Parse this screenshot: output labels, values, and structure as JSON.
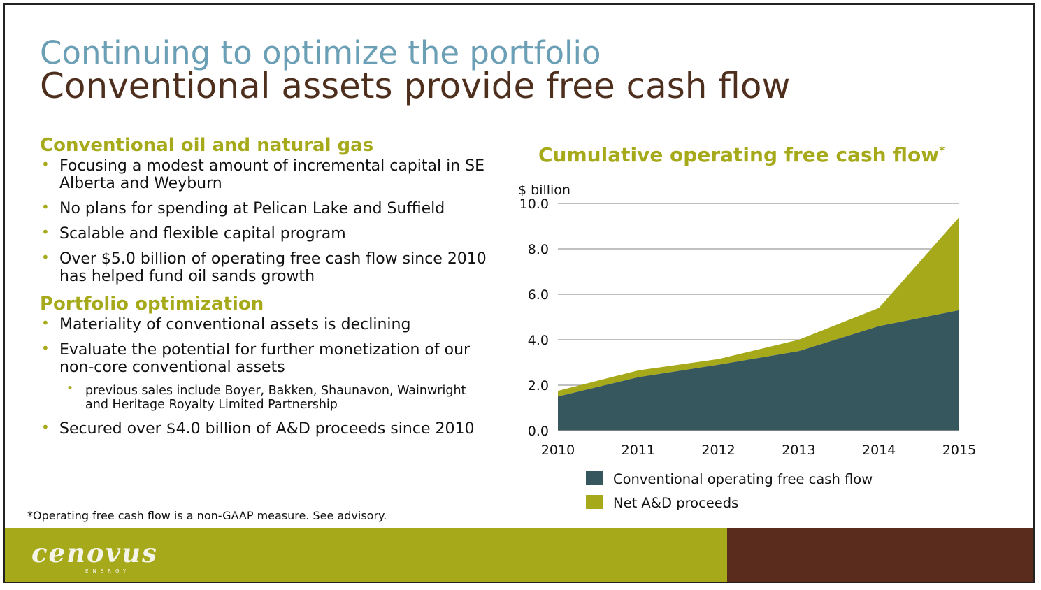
{
  "slide": {
    "title_top": "Continuing to optimize the portfolio",
    "title_main": "Conventional assets provide free cash flow",
    "footnote": "*Operating free cash flow is a non-GAAP measure. See advisory.",
    "logo": "cenovus",
    "logo_sub": "ENERGY"
  },
  "left": {
    "section1": {
      "heading": "Conventional oil and natural gas",
      "bullets": [
        "Focusing a modest amount of incremental capital in SE Alberta and Weyburn",
        "No plans for spending at Pelican Lake and Suffield",
        "Scalable and flexible capital program",
        "Over $5.0 billion of operating free cash flow since 2010 has helped fund oil sands growth"
      ]
    },
    "section2": {
      "heading": "Portfolio optimization",
      "bullets": [
        "Materiality of conventional assets is declining",
        "Evaluate the potential for further monetization of our non-core conventional assets"
      ],
      "sub_bullet": "previous sales include Boyer, Bakken, Shaunavon, Wainwright and Heritage Royalty Limited Partnership",
      "last_bullet": "Secured over $4.0 billion of A&D proceeds since 2010"
    }
  },
  "colors": {
    "accent": "#a6aa1a",
    "title_blue": "#6b9fb5",
    "title_brown": "#4e2f1e",
    "series_dark": "#37575f",
    "series_light": "#a6aa1a",
    "band_brown": "#5a2c1e"
  },
  "chart_data": {
    "type": "area",
    "stacked": true,
    "title": "Cumulative operating free cash flow",
    "title_mark": "*",
    "ylabel": "$ billion",
    "xlabel": "",
    "x": [
      "2010",
      "2011",
      "2012",
      "2013",
      "2014",
      "2015"
    ],
    "ylim": [
      0,
      10
    ],
    "yticks": [
      "0.0",
      "2.0",
      "4.0",
      "6.0",
      "8.0",
      "10.0"
    ],
    "grid": true,
    "legend_position": "bottom",
    "series": [
      {
        "name": "Conventional operating free cash flow",
        "color": "#37575f",
        "values": [
          1.5,
          2.35,
          2.9,
          3.5,
          4.6,
          5.3
        ]
      },
      {
        "name": "Net A&D proceeds",
        "color": "#a6aa1a",
        "values": [
          0.25,
          0.3,
          0.25,
          0.5,
          0.8,
          4.1
        ]
      }
    ]
  }
}
